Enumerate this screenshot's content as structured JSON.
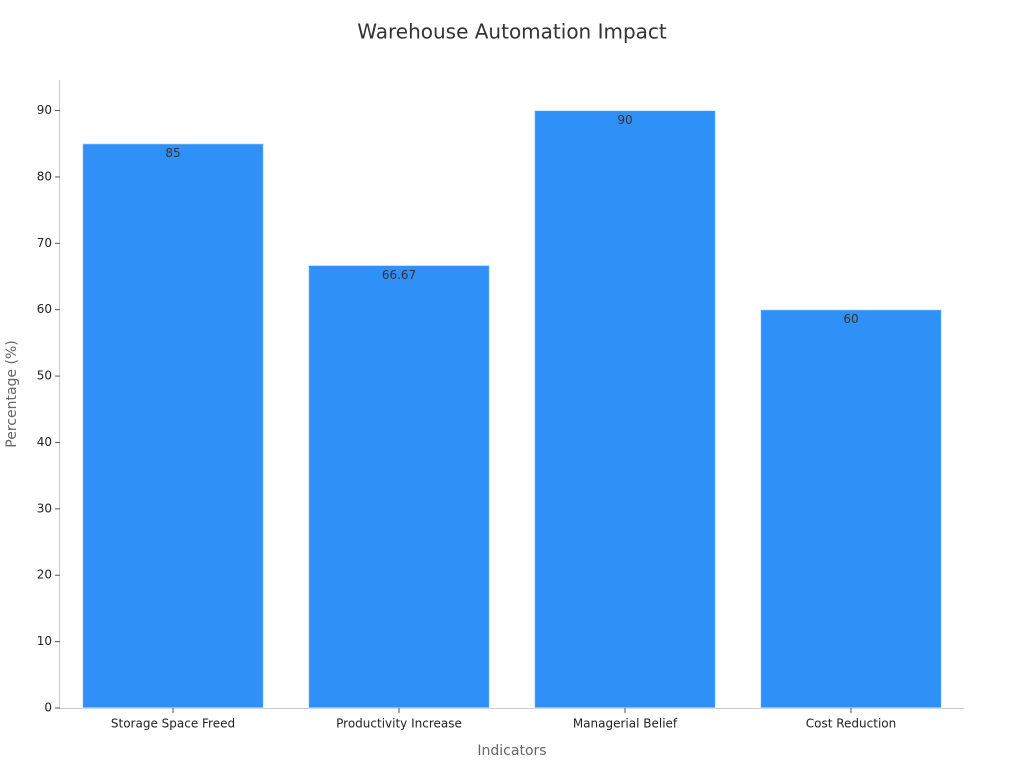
{
  "chart_data": {
    "type": "bar",
    "title": "Warehouse Automation Impact",
    "x_label": "Indicators",
    "y_label": "Percentage (%)",
    "categories": [
      "Storage Space Freed",
      "Productivity Increase",
      "Managerial Belief",
      "Cost Reduction"
    ],
    "values": [
      85,
      66.67,
      90,
      60
    ],
    "color": "#2f91f8",
    "ylim": [
      0,
      94.6
    ],
    "yticks": [
      0,
      10,
      20,
      30,
      40,
      50,
      60,
      70,
      80,
      90
    ],
    "grid": false
  }
}
